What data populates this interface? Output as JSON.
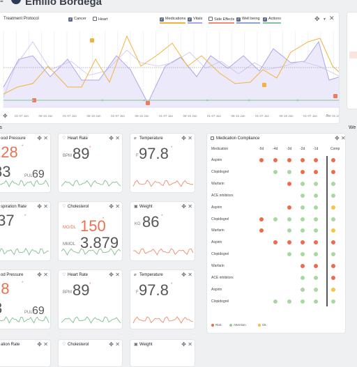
{
  "header": {
    "patient_name": "Emilio Bordega",
    "menu_icon": "menu-icon",
    "avatar_icon": "avatar-icon"
  },
  "timeline": {
    "title": "Treatment Protocol",
    "toggles": [
      {
        "label": "Cancer",
        "checked": true
      },
      {
        "label": "Heart",
        "checked": false
      }
    ],
    "series_toggles": [
      {
        "label": "Medications",
        "checked": true,
        "color": "#f2b33d"
      },
      {
        "label": "Vitals",
        "checked": true,
        "color": "#a9a6e8"
      },
      {
        "label": "Side Effects",
        "checked": false,
        "color": "#f08b78"
      },
      {
        "label": "Well being",
        "checked": true,
        "color": "#8da0d8"
      },
      {
        "label": "Actions",
        "checked": true,
        "color": "#7fc49a"
      }
    ],
    "x_ticks": [
      "01-07 Jan",
      "08-16 Jan",
      "01-07 Jan",
      "08-16 Jan",
      "01-07 Jan",
      "08-16 Jan",
      "01-07 Jan",
      "08-16 Jan",
      "01-07 Jan",
      "08-16 Jan",
      "01-07 Jan",
      "08-16 Jan",
      "01-07 Jan",
      "08-16 Jan"
    ],
    "colors": {
      "medications": "#f2b33d",
      "vitals": "#a9a6e8",
      "marker": "#f07a5a",
      "baseline": "#9aa0ad",
      "actions": "#8fd0a4"
    }
  },
  "vitals_section_label": "ls",
  "cards": [
    {
      "title": "ood Pressure",
      "value1": "128",
      "value1_red": true,
      "value2": "83",
      "unit2": "PUL",
      "value3": "69"
    },
    {
      "title": "Heart Rate",
      "unit": "BPM",
      "value": "89",
      "icon": "heart-icon"
    },
    {
      "title": "Temperature",
      "unit": "F",
      "value": "97.8",
      "icon": "thermometer-icon"
    },
    {
      "title": "spiration Rate",
      "value": ".37"
    },
    {
      "title": "Cholesterol",
      "unit1": "MG/DL",
      "value1": "150",
      "value1_red": true,
      "unit2": "MMOL",
      "value2": "3.879",
      "icon": "cholesterol-icon"
    },
    {
      "title": "Weight",
      "unit": "KG",
      "value": "86",
      "icon": "weight-icon"
    },
    {
      "title": "od Pressure",
      "value1": "28",
      "value1_red": true,
      "value2": "3",
      "unit2": "PUL",
      "value3": "69"
    },
    {
      "title": "Heart Rate",
      "unit": "BPM",
      "value": "89",
      "icon": "heart-icon"
    },
    {
      "title": "Temperature",
      "unit": "F",
      "value": "97.8",
      "icon": "thermometer-icon"
    },
    {
      "title": "ation Rate"
    },
    {
      "title": "Cholesterol",
      "icon": "cholesterol-icon"
    },
    {
      "title": "Weight",
      "icon": "weight-icon"
    }
  ],
  "compliance": {
    "title": "Medication Compliance",
    "col_header_medication": "Medication",
    "col_headers": [
      "-5d",
      "-4d",
      "-3d",
      "-2d",
      "-1d",
      "Comp"
    ],
    "rows": [
      {
        "name": "Aspirin",
        "dots": [
          "red",
          "red",
          "red",
          "red",
          "red"
        ],
        "comp": "red"
      },
      {
        "name": "Clopidogrel",
        "dots": [
          "",
          "green",
          "green",
          "red",
          "red"
        ],
        "comp": "red"
      },
      {
        "name": "Warfarin",
        "dots": [
          "",
          "",
          "red",
          "green",
          "green"
        ],
        "comp": "green"
      },
      {
        "name": "ACE inhibitors",
        "dots": [
          "",
          "",
          "",
          "green",
          "green"
        ],
        "comp": "green"
      },
      {
        "name": "Aspirin",
        "dots": [
          "",
          "",
          "red",
          "green",
          "green"
        ],
        "comp": "yellow"
      },
      {
        "name": "Clopidogrel",
        "dots": [
          "red",
          "green",
          "green",
          "green",
          "green"
        ],
        "comp": "green"
      },
      {
        "name": "Warfarin",
        "dots": [
          "red",
          "",
          "green",
          "green",
          "green"
        ],
        "comp": "yellow"
      },
      {
        "name": "Aspirin",
        "dots": [
          "",
          "red",
          "red",
          "red",
          "red"
        ],
        "comp": "red"
      },
      {
        "name": "Clopidogrel",
        "dots": [
          "",
          "",
          "green",
          "green",
          "green"
        ],
        "comp": "green"
      },
      {
        "name": "Warfarin",
        "dots": [
          "",
          "",
          "",
          "red",
          "red"
        ],
        "comp": "red"
      },
      {
        "name": "ACE inhibitors",
        "dots": [
          "",
          "",
          "",
          "green",
          "green"
        ],
        "comp": "red"
      },
      {
        "name": "Aspirin",
        "dots": [
          "",
          "",
          "",
          "green",
          "green"
        ],
        "comp": "yellow"
      },
      {
        "name": "Clopidogrel",
        "dots": [
          "",
          "green",
          "green",
          "green",
          "green"
        ],
        "comp": "green"
      }
    ],
    "legend": [
      {
        "label": "Risk",
        "color": "#f0674a"
      },
      {
        "label": "Attention",
        "color": "#8fcf96"
      },
      {
        "label": "Ok",
        "color": "#f3c13a"
      }
    ],
    "dot_colors": {
      "red": "#ef6a4b",
      "green": "#a6d8a0",
      "yellow": "#f5c445"
    }
  },
  "right_section_label": "We"
}
